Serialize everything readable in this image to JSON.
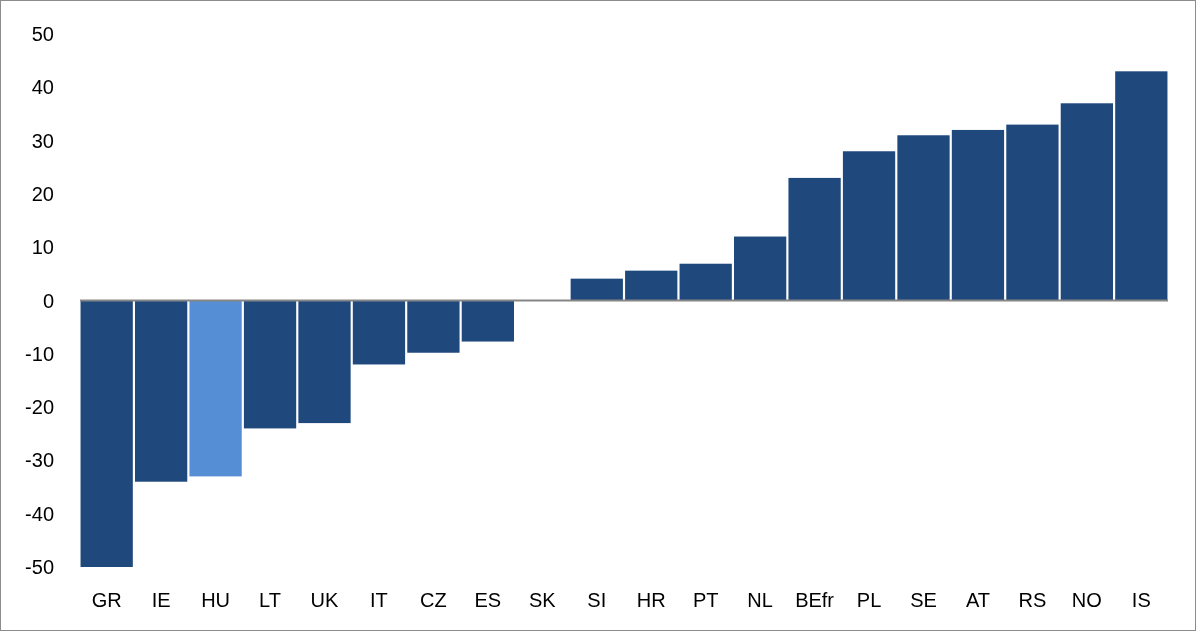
{
  "chart_data": {
    "type": "bar",
    "categories": [
      "GR",
      "IE",
      "HU",
      "LT",
      "UK",
      "IT",
      "CZ",
      "ES",
      "SK",
      "SI",
      "HR",
      "PT",
      "NL",
      "BEfr",
      "PL",
      "SE",
      "AT",
      "RS",
      "NO",
      "IS"
    ],
    "values": [
      -50,
      -34,
      -33,
      -24,
      -23,
      -12,
      -9.8,
      -7.7,
      0,
      4.1,
      5.6,
      6.9,
      12,
      23,
      28,
      31,
      32,
      33,
      37,
      43
    ],
    "colors": [
      "#1f497d",
      "#1f497d",
      "#558ed5",
      "#1f497d",
      "#1f497d",
      "#1f497d",
      "#1f497d",
      "#1f497d",
      "#1f497d",
      "#1f497d",
      "#1f497d",
      "#1f497d",
      "#1f497d",
      "#1f497d",
      "#1f497d",
      "#1f497d",
      "#1f497d",
      "#1f497d",
      "#1f497d",
      "#1f497d"
    ],
    "ylim": [
      -50,
      50
    ],
    "yticks": [
      -50,
      -40,
      -30,
      -20,
      -10,
      0,
      10,
      20,
      30,
      40,
      50
    ]
  }
}
